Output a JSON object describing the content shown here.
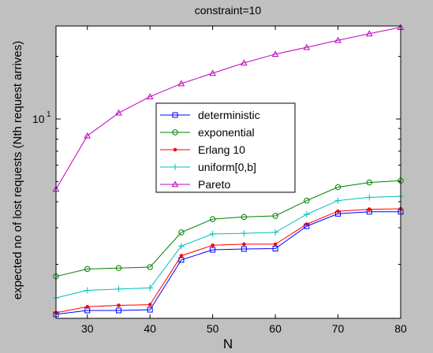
{
  "chart_data": {
    "type": "line",
    "title": "constraint=10",
    "xlabel": "N",
    "ylabel": "expected no of lost requests (Nth request arrives)",
    "xlim": [
      25,
      80
    ],
    "xticks": [
      30,
      40,
      50,
      60,
      70,
      80
    ],
    "ylim": [
      1.1,
      28
    ],
    "yscale": "log",
    "ytick_labels": [
      {
        "base": "10",
        "exp": "1"
      }
    ],
    "grid": false,
    "legend_position": "center",
    "x": [
      25,
      30,
      35,
      40,
      45,
      50,
      55,
      60,
      65,
      70,
      75,
      80
    ],
    "series": [
      {
        "name": "deterministic",
        "color": "#0000ff",
        "marker": "square",
        "values": [
          1.15,
          1.2,
          1.2,
          1.21,
          2.1,
          2.35,
          2.37,
          2.38,
          3.05,
          3.5,
          3.58,
          3.58
        ]
      },
      {
        "name": "exponential",
        "color": "#008000",
        "marker": "circle",
        "values": [
          1.75,
          1.9,
          1.92,
          1.94,
          2.85,
          3.3,
          3.38,
          3.42,
          4.05,
          4.7,
          4.95,
          5.05
        ]
      },
      {
        "name": "Erlang 10",
        "color": "#ff0000",
        "marker": "dot",
        "values": [
          1.17,
          1.25,
          1.27,
          1.28,
          2.2,
          2.47,
          2.5,
          2.5,
          3.12,
          3.6,
          3.68,
          3.7
        ]
      },
      {
        "name": "uniform[0,b]",
        "color": "#00bfbf",
        "marker": "plus",
        "values": [
          1.38,
          1.5,
          1.52,
          1.54,
          2.45,
          2.8,
          2.82,
          2.85,
          3.48,
          4.05,
          4.2,
          4.25
        ]
      },
      {
        "name": "Pareto",
        "color": "#bf00bf",
        "marker": "triangle",
        "values": [
          4.6,
          8.3,
          10.7,
          12.8,
          14.8,
          16.6,
          18.6,
          20.5,
          22.1,
          23.9,
          25.7,
          27.6
        ]
      }
    ]
  }
}
